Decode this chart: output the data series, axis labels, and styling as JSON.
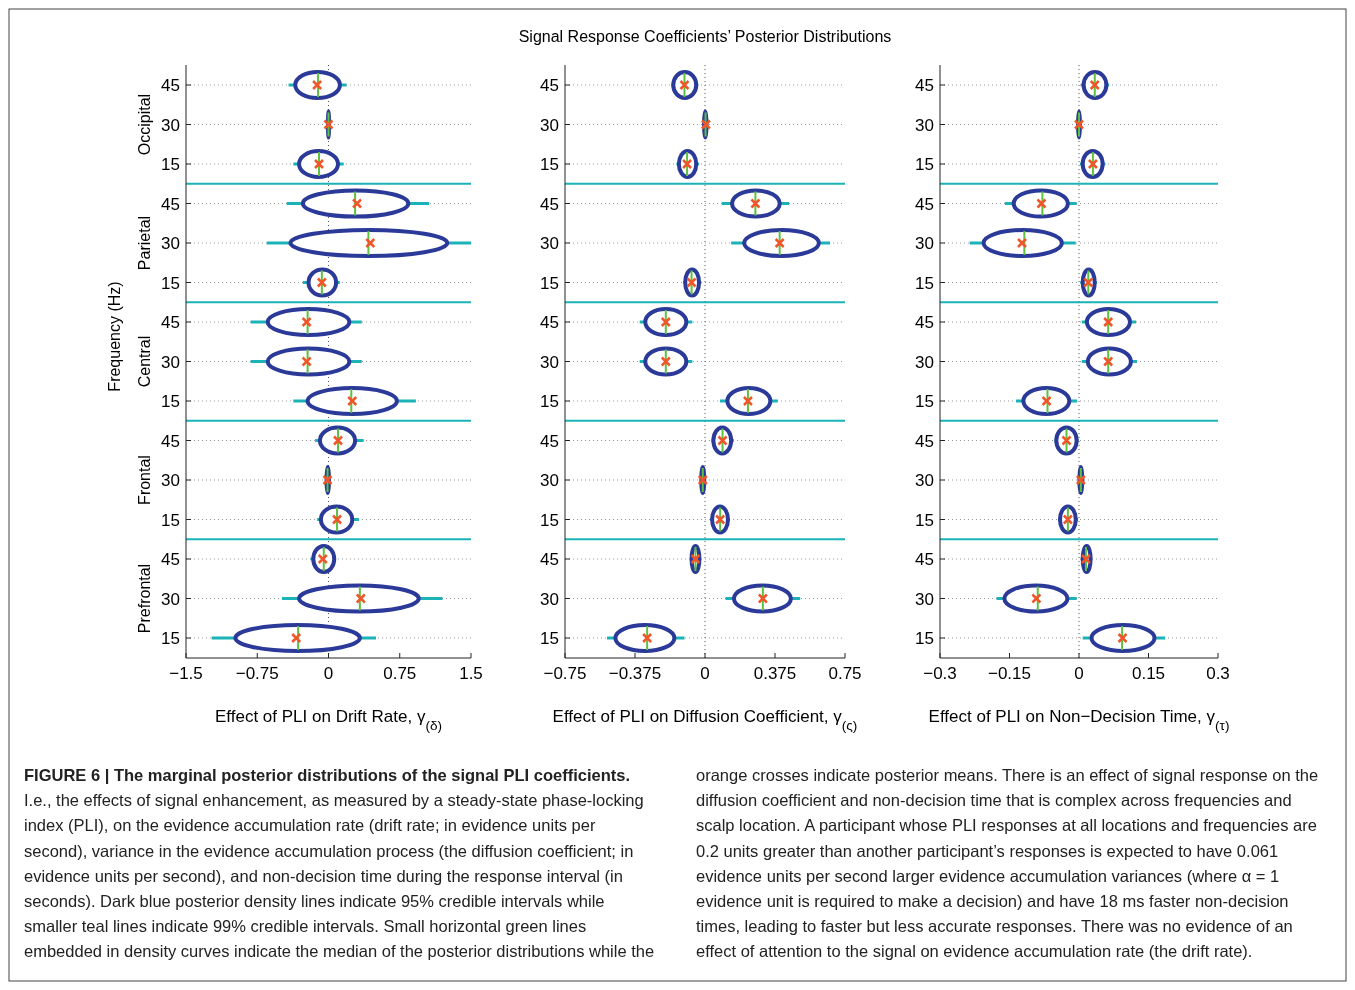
{
  "chart_data": [
    {
      "type": "box",
      "orientation": "horizontal",
      "ylabel": "Frequency (Hz)",
      "xlabel": "Effect of PLI on Drift Rate, γ$_{(δ)}$",
      "annotations": [
        "Occipital",
        "Parietal",
        "Central",
        "Frontal",
        "Prefrontal"
      ],
      "categories": [
        "45",
        "30",
        "15",
        "45",
        "30",
        "15",
        "45",
        "30",
        "15",
        "45",
        "30",
        "15",
        "45",
        "30",
        "15"
      ],
      "xlim": [
        -1.5,
        1.5
      ],
      "xticks": [
        {
          "value": -1.5,
          "label": "−1.5"
        },
        {
          "value": -0.75,
          "label": "−0.75"
        },
        0,
        0.75,
        1.5
      ],
      "grid": "y",
      "ref_lines": [
        {
          "axis": "x",
          "value": 0,
          "line_style": "dotted",
          "color": "#555555"
        }
      ],
      "boxes": [
        {
          "low": -0.42,
          "q1": -0.35,
          "median": -0.11,
          "q3": 0.12,
          "high": 0.19,
          "mean": -0.12
        },
        {
          "low": -0.01,
          "q1": -0.005,
          "median": 0,
          "q3": 0.005,
          "high": 0.01,
          "mean": 0
        },
        {
          "low": -0.37,
          "q1": -0.31,
          "median": -0.1,
          "q3": 0.1,
          "high": 0.16,
          "mean": -0.1
        },
        {
          "low": -0.44,
          "q1": -0.27,
          "median": 0.28,
          "q3": 0.84,
          "high": 1.06,
          "mean": 0.3
        },
        {
          "low": -0.65,
          "q1": -0.4,
          "median": 0.42,
          "q3": 1.25,
          "high": 1.5,
          "mean": 0.44
        },
        {
          "low": -0.27,
          "q1": -0.21,
          "median": -0.07,
          "q3": 0.08,
          "high": 0.12,
          "mean": -0.07
        },
        {
          "low": -0.82,
          "q1": -0.64,
          "median": -0.22,
          "q3": 0.22,
          "high": 0.35,
          "mean": -0.23
        },
        {
          "low": -0.82,
          "q1": -0.64,
          "median": -0.22,
          "q3": 0.22,
          "high": 0.35,
          "mean": -0.23
        },
        {
          "low": -0.37,
          "q1": -0.22,
          "median": 0.24,
          "q3": 0.72,
          "high": 0.92,
          "mean": 0.25
        },
        {
          "low": -0.14,
          "q1": -0.09,
          "median": 0.1,
          "q3": 0.28,
          "high": 0.37,
          "mean": 0.1
        },
        {
          "low": -0.03,
          "q1": -0.02,
          "median": -0.01,
          "q3": 0.005,
          "high": 0.01,
          "mean": -0.01
        },
        {
          "low": -0.12,
          "q1": -0.08,
          "median": 0.09,
          "q3": 0.25,
          "high": 0.32,
          "mean": 0.09
        },
        {
          "low": -0.19,
          "q1": -0.16,
          "median": -0.05,
          "q3": 0.06,
          "high": 0.08,
          "mean": -0.06
        },
        {
          "low": -0.49,
          "q1": -0.31,
          "median": 0.33,
          "q3": 0.95,
          "high": 1.2,
          "mean": 0.34
        },
        {
          "low": -1.23,
          "q1": -0.98,
          "median": -0.32,
          "q3": 0.33,
          "high": 0.5,
          "mean": -0.34
        }
      ]
    },
    {
      "type": "box",
      "title": "Signal Response Coefficients’ Posterior Distributions",
      "orientation": "horizontal",
      "xlabel": "Effect of PLI on Diffusion Coefficient, γ$_{(ς)}$",
      "categories": [
        "45",
        "30",
        "15",
        "45",
        "30",
        "15",
        "45",
        "30",
        "15",
        "45",
        "30",
        "15",
        "45",
        "30",
        "15"
      ],
      "xlim": [
        -0.75,
        0.75
      ],
      "xticks": [
        {
          "value": -0.75,
          "label": "−0.75"
        },
        {
          "value": -0.375,
          "label": "−0.375"
        },
        0,
        0.375,
        0.75
      ],
      "grid": "y",
      "ref_lines": [
        {
          "axis": "x",
          "value": 0,
          "line_style": "dotted",
          "color": "#555555"
        }
      ],
      "boxes": [
        {
          "low": -0.18,
          "q1": -0.17,
          "median": -0.11,
          "q3": -0.047,
          "high": -0.036,
          "mean": -0.11
        },
        {
          "low": -0.01,
          "q1": -0.005,
          "median": 0.003,
          "q3": 0.008,
          "high": 0.01,
          "mean": 0.005
        },
        {
          "low": -0.153,
          "q1": -0.14,
          "median": -0.096,
          "q3": -0.047,
          "high": -0.032,
          "mean": -0.096
        },
        {
          "low": 0.09,
          "q1": 0.145,
          "median": 0.27,
          "q3": 0.4,
          "high": 0.45,
          "mean": 0.27
        },
        {
          "low": 0.14,
          "q1": 0.21,
          "median": 0.4,
          "q3": 0.61,
          "high": 0.67,
          "mean": 0.4
        },
        {
          "low": -0.117,
          "q1": -0.106,
          "median": -0.072,
          "q3": -0.032,
          "high": -0.02,
          "mean": -0.072
        },
        {
          "low": -0.35,
          "q1": -0.32,
          "median": -0.21,
          "q3": -0.1,
          "high": -0.068,
          "mean": -0.21
        },
        {
          "low": -0.35,
          "q1": -0.32,
          "median": -0.21,
          "q3": -0.1,
          "high": -0.068,
          "mean": -0.21
        },
        {
          "low": 0.08,
          "q1": 0.12,
          "median": 0.23,
          "q3": 0.35,
          "high": 0.39,
          "mean": 0.23
        },
        {
          "low": 0.034,
          "q1": 0.045,
          "median": 0.094,
          "q3": 0.14,
          "high": 0.155,
          "mean": 0.094
        },
        {
          "low": -0.025,
          "q1": -0.02,
          "median": -0.012,
          "q3": -0.004,
          "high": 0,
          "mean": -0.012
        },
        {
          "low": 0.028,
          "q1": 0.038,
          "median": 0.081,
          "q3": 0.123,
          "high": 0.134,
          "mean": 0.081
        },
        {
          "low": -0.08,
          "q1": -0.072,
          "median": -0.051,
          "q3": -0.03,
          "high": -0.026,
          "mean": -0.051
        },
        {
          "low": 0.11,
          "q1": 0.155,
          "median": 0.31,
          "q3": 0.46,
          "high": 0.51,
          "mean": 0.31
        },
        {
          "low": -0.525,
          "q1": -0.48,
          "median": -0.31,
          "q3": -0.164,
          "high": -0.11,
          "mean": -0.31
        }
      ]
    },
    {
      "type": "box",
      "orientation": "horizontal",
      "xlabel": "Effect of PLI on Non−Decision Time, γ$_{(τ)}$",
      "categories": [
        "45",
        "30",
        "15",
        "45",
        "30",
        "15",
        "45",
        "30",
        "15",
        "45",
        "30",
        "15",
        "45",
        "30",
        "15"
      ],
      "xlim": [
        -0.3,
        0.3
      ],
      "xticks": [
        {
          "value": -0.3,
          "label": "−0.3"
        },
        {
          "value": -0.15,
          "label": "−0.15"
        },
        0,
        0.15,
        0.3
      ],
      "grid": "y",
      "ref_lines": [
        {
          "axis": "x",
          "value": 0,
          "line_style": "dotted",
          "color": "#555555"
        }
      ],
      "boxes": [
        {
          "low": 0.004,
          "q1": 0.01,
          "median": 0.034,
          "q3": 0.059,
          "high": 0.065,
          "mean": 0.034
        },
        {
          "low": -0.003,
          "q1": -0.002,
          "median": 0,
          "q3": 0.002,
          "high": 0.003,
          "mean": 0
        },
        {
          "low": 0.002,
          "q1": 0.008,
          "median": 0.03,
          "q3": 0.051,
          "high": 0.057,
          "mean": 0.03
        },
        {
          "low": -0.16,
          "q1": -0.141,
          "median": -0.079,
          "q3": -0.024,
          "high": -0.005,
          "mean": -0.081
        },
        {
          "low": -0.236,
          "q1": -0.206,
          "median": -0.118,
          "q3": -0.037,
          "high": -0.007,
          "mean": -0.123
        },
        {
          "low": 0.003,
          "q1": 0.008,
          "median": 0.02,
          "q3": 0.034,
          "high": 0.038,
          "mean": 0.02
        },
        {
          "low": 0.006,
          "q1": 0.017,
          "median": 0.063,
          "q3": 0.11,
          "high": 0.123,
          "mean": 0.063
        },
        {
          "low": 0.006,
          "q1": 0.019,
          "median": 0.063,
          "q3": 0.112,
          "high": 0.125,
          "mean": 0.063
        },
        {
          "low": -0.136,
          "q1": -0.12,
          "median": -0.068,
          "q3": -0.021,
          "high": -0.004,
          "mean": -0.07
        },
        {
          "low": -0.053,
          "q1": -0.049,
          "median": -0.027,
          "q3": -0.005,
          "high": -0.001,
          "mean": -0.027
        },
        {
          "low": 0,
          "q1": 0.001,
          "median": 0.004,
          "q3": 0.007,
          "high": 0.008,
          "mean": 0.004
        },
        {
          "low": -0.045,
          "q1": -0.041,
          "median": -0.024,
          "q3": -0.007,
          "high": -0.002,
          "mean": -0.024
        },
        {
          "low": 0.006,
          "q1": 0.008,
          "median": 0.015,
          "q3": 0.025,
          "high": 0.027,
          "mean": 0.015
        },
        {
          "low": -0.178,
          "q1": -0.161,
          "median": -0.089,
          "q3": -0.025,
          "high": -0.005,
          "mean": -0.092
        },
        {
          "low": 0.008,
          "q1": 0.027,
          "median": 0.093,
          "q3": 0.163,
          "high": 0.186,
          "mean": 0.094
        }
      ]
    },
    {
      "type": "other",
      "title": "FIGURE 6 | The marginal posterior distributions of the signal PLI coefficients.",
      "annotations": [
        "I.e., the effects of signal enhancement, as measured by a steady-state phase-locking index (PLI), on the evidence accumulation rate (drift rate; in evidence units per second), variance in the evidence accumulation process (the diffusion coefficient; in evidence units per second), and non-decision time during the response interval (in seconds). Dark blue posterior density lines indicate 95% credible intervals while smaller teal lines indicate 99% credible intervals. Small horizontal green lines embedded in density curves indicate the median of the posterior distributions while the orange crosses indicate posterior means. There is an effect of signal response on the diffusion coefficient and non-decision time that is complex across frequencies and scalp location. A participant whose PLI responses at all locations and frequencies are 0.2 units greater than another participant’s responses is expected to have 0.061 evidence units per second larger evidence accumulation variances (where α = 1 evidence unit is required to make a decision) and have 18 ms faster non-decision times, leading to faster but less accurate responses. There was no evidence of an effect of attention to the signal on evidence accumulation rate (the drift rate)."
      ]
    }
  ]
}
